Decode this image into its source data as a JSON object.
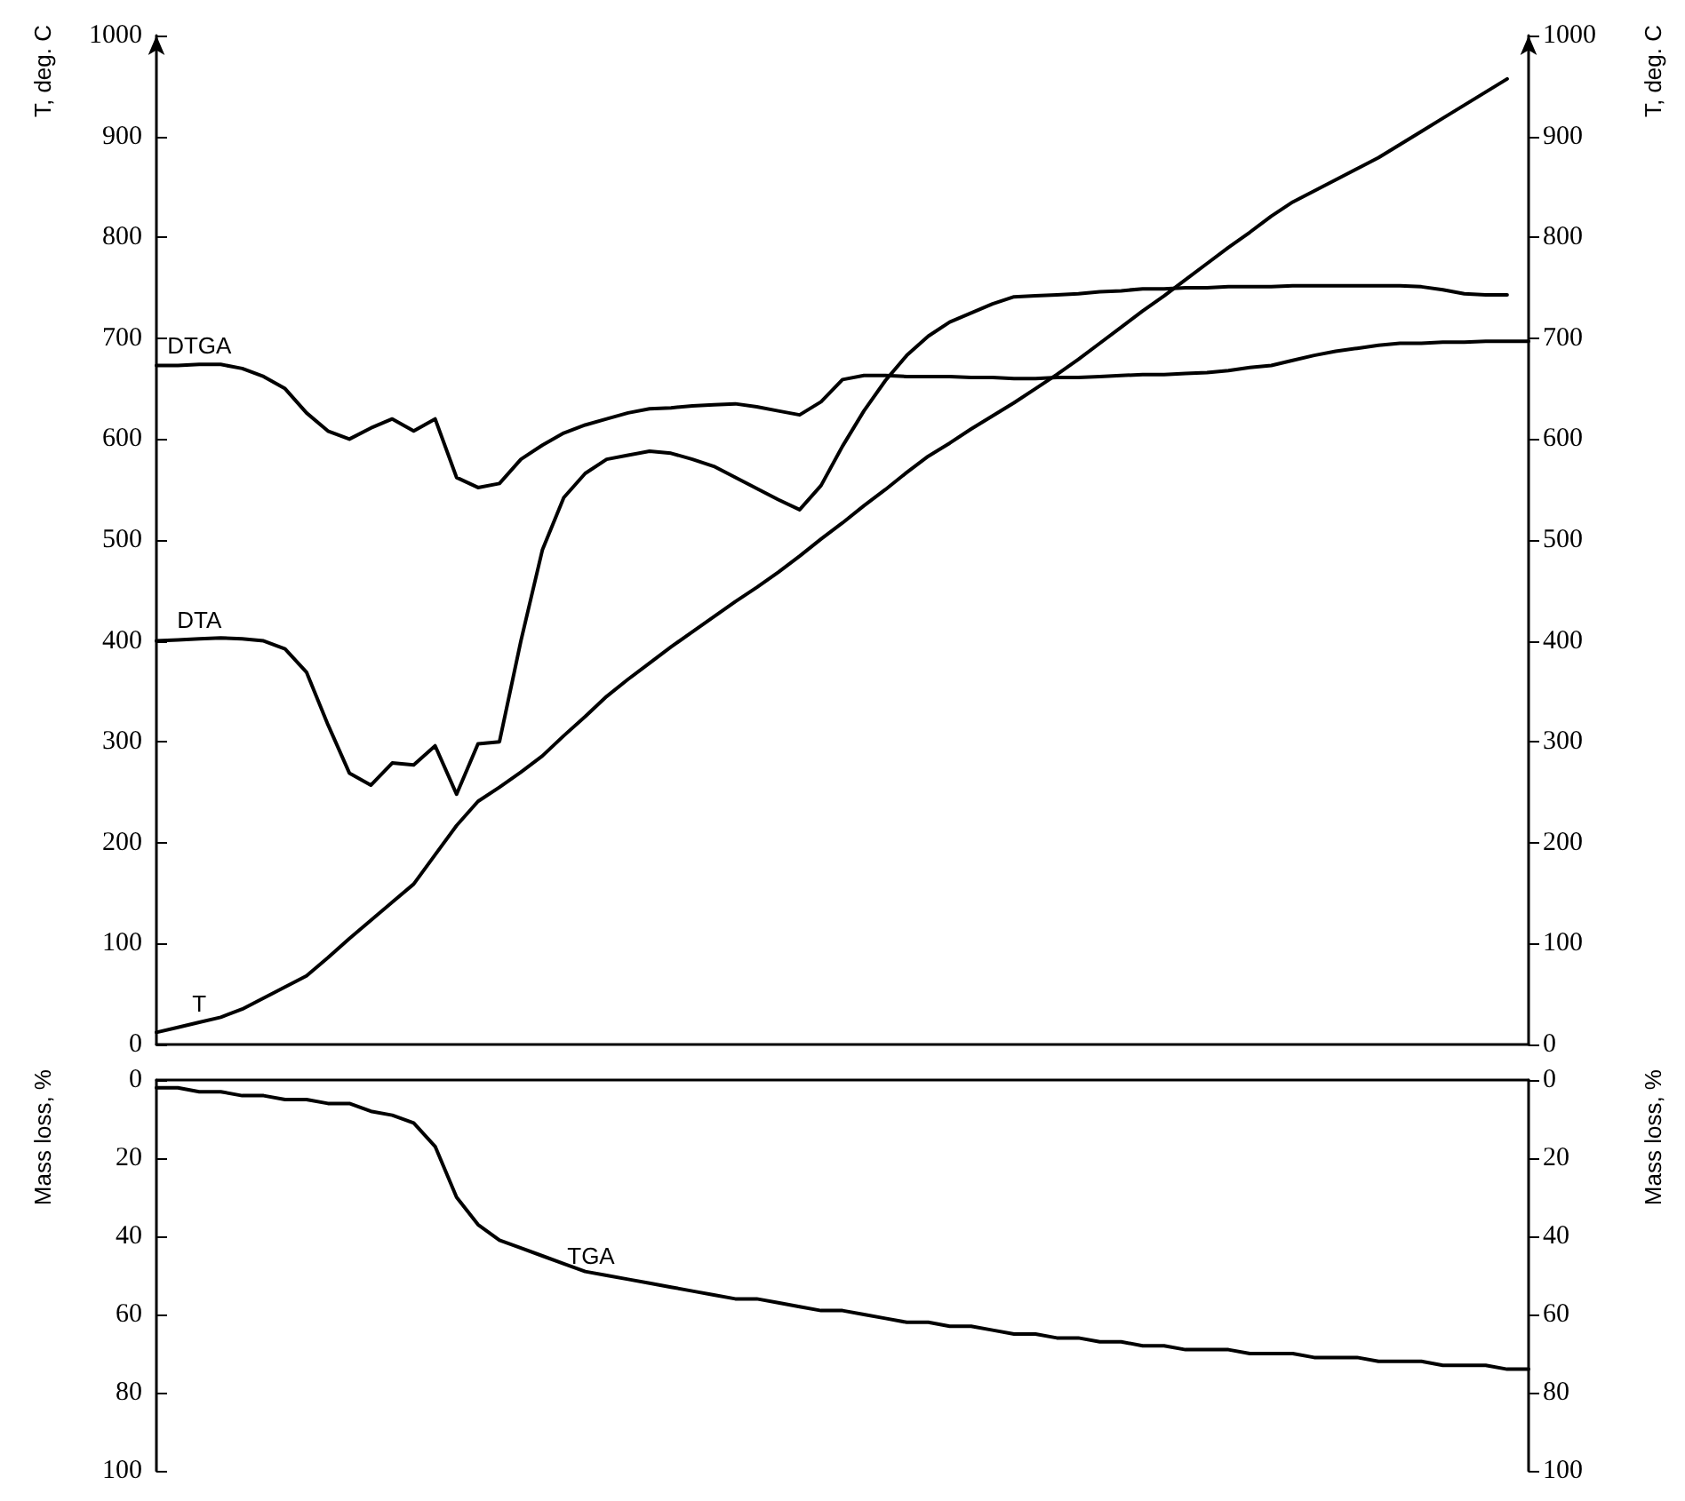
{
  "chart_data": [
    {
      "type": "line",
      "ylabel": "T, deg. C",
      "y2label": "T, deg. C",
      "categories": [
        null,
        null,
        null,
        null,
        null,
        null,
        null,
        null,
        null,
        null,
        null,
        null,
        null,
        null,
        null,
        null,
        null,
        null,
        null,
        null,
        null,
        null,
        null,
        null,
        null,
        null,
        null,
        null,
        null,
        null,
        null,
        null,
        null,
        null,
        null,
        null,
        null,
        null,
        null,
        null,
        null,
        null,
        null,
        null,
        null,
        null,
        null,
        null,
        null,
        null,
        null,
        null,
        null,
        null,
        null,
        null,
        null,
        null,
        null,
        null,
        null,
        null,
        null,
        null,
        null
      ],
      "series": [
        {
          "name": "DTGA",
          "color": "#000000",
          "values": [
            673,
            673,
            674,
            674,
            670,
            662,
            650,
            626,
            608,
            600,
            611,
            620,
            608,
            620,
            562,
            552,
            556,
            580,
            594,
            606,
            614,
            620,
            626,
            630,
            631,
            633,
            634,
            635,
            632,
            628,
            624,
            637,
            659,
            663,
            663,
            662,
            662,
            662,
            661,
            661,
            660,
            660,
            661,
            661,
            662,
            663,
            664,
            664,
            665,
            666,
            668,
            671,
            673,
            678,
            683,
            687,
            690,
            693,
            695,
            695,
            696,
            696,
            697,
            697,
            697
          ]
        },
        {
          "name": "DTA",
          "color": "#000000",
          "values": [
            400,
            401,
            402,
            403,
            402,
            400,
            392,
            369,
            317,
            269,
            257,
            279,
            277,
            296,
            248,
            298,
            300,
            400,
            490,
            542,
            566,
            580,
            584,
            588,
            586,
            580,
            573,
            562,
            551,
            540,
            530,
            554,
            593,
            628,
            658,
            683,
            702,
            716,
            725,
            734,
            741,
            742,
            743,
            744,
            746,
            747,
            749,
            749,
            750,
            750,
            751,
            751,
            751,
            752,
            752,
            752,
            752,
            752,
            752,
            751,
            748,
            744,
            743,
            743,
            null
          ]
        },
        {
          "name": "T",
          "color": "#000000",
          "values": [
            12,
            17,
            22,
            27,
            35,
            46,
            57,
            68,
            86,
            105,
            123,
            141,
            159,
            188,
            217,
            241,
            255,
            270,
            286,
            306,
            325,
            345,
            362,
            378,
            394,
            409,
            424,
            439,
            453,
            468,
            484,
            501,
            517,
            534,
            550,
            567,
            583,
            596,
            610,
            623,
            636,
            650,
            664,
            679,
            695,
            711,
            727,
            742,
            758,
            774,
            790,
            805,
            821,
            835,
            846,
            857,
            868,
            879,
            892,
            905,
            918,
            931,
            944,
            957,
            null
          ]
        }
      ],
      "ylim": [
        0,
        1000
      ],
      "yticks": [
        0,
        100,
        200,
        300,
        400,
        500,
        600,
        700,
        800,
        900,
        1000
      ],
      "y2lim": [
        0,
        1000
      ],
      "y2ticks": [
        0,
        100,
        200,
        300,
        400,
        500,
        600,
        700,
        800,
        900,
        1000
      ],
      "tick_labels": "y",
      "grid": false,
      "legend": false,
      "marker": "none",
      "line_style": "solid"
    },
    {
      "type": "line",
      "ylabel": "Mass loss, %",
      "y2label": "Mass loss, %",
      "categories": [
        null,
        null,
        null,
        null,
        null,
        null,
        null,
        null,
        null,
        null,
        null,
        null,
        null,
        null,
        null,
        null,
        null,
        null,
        null,
        null,
        null,
        null,
        null,
        null,
        null,
        null,
        null,
        null,
        null,
        null,
        null,
        null,
        null,
        null,
        null,
        null,
        null,
        null,
        null,
        null,
        null,
        null,
        null,
        null,
        null,
        null,
        null,
        null,
        null,
        null,
        null,
        null,
        null,
        null,
        null,
        null,
        null,
        null,
        null,
        null,
        null,
        null,
        null,
        null,
        null
      ],
      "series": [
        {
          "name": "TGA",
          "color": "#000000",
          "values": [
            2,
            2,
            3,
            3,
            4,
            4,
            5,
            5,
            6,
            6,
            8,
            9,
            11,
            17,
            30,
            37,
            41,
            43,
            45,
            47,
            49,
            50,
            51,
            52,
            53,
            54,
            55,
            56,
            56,
            57,
            58,
            59,
            59,
            60,
            61,
            62,
            62,
            63,
            63,
            64,
            65,
            65,
            66,
            66,
            67,
            67,
            68,
            68,
            69,
            69,
            69,
            70,
            70,
            70,
            71,
            71,
            71,
            72,
            72,
            72,
            73,
            73,
            73,
            74,
            74
          ]
        }
      ],
      "ylim": [
        100,
        0
      ],
      "yticks": [
        0,
        20,
        40,
        60,
        80,
        100
      ],
      "y2lim": [
        100,
        0
      ],
      "y2ticks": [
        0,
        20,
        40,
        60,
        80,
        100
      ],
      "tick_labels": "y",
      "grid": false,
      "legend": false,
      "marker": "none",
      "line_style": "solid"
    }
  ]
}
